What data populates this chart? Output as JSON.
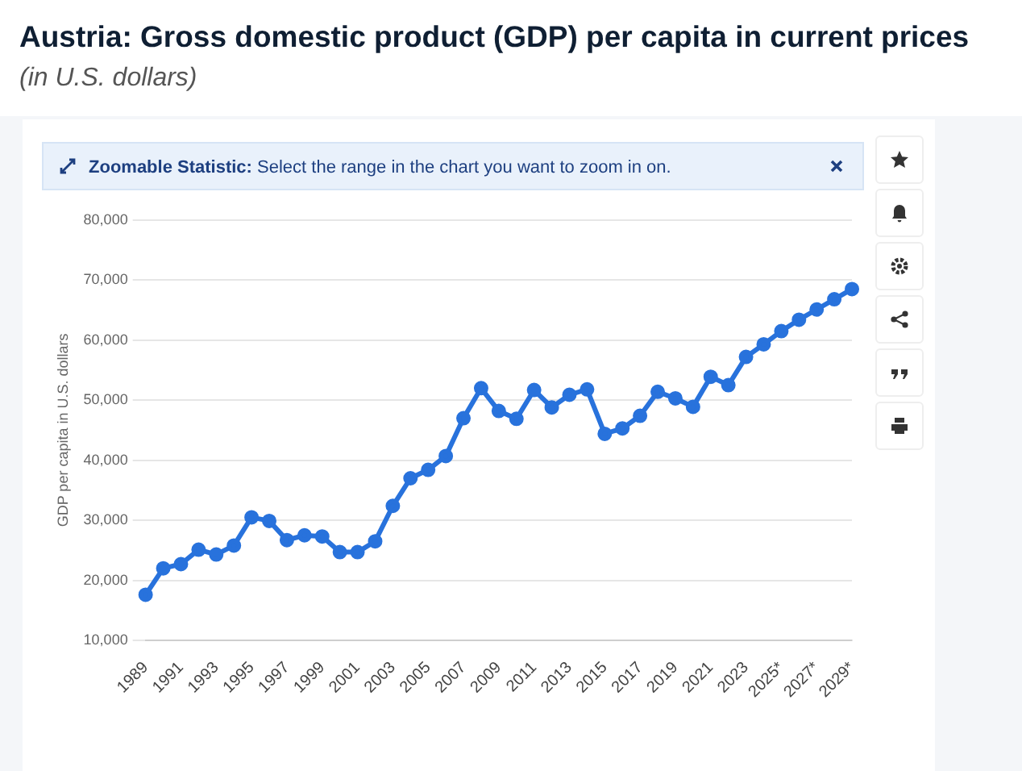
{
  "chart_data": {
    "type": "line",
    "title": "Austria: Gross domestic product (GDP) per capita in current prices",
    "subtitle": "(in U.S. dollars)",
    "ylabel": "GDP per capita in U.S. dollars",
    "annotations": [
      "Zoomable Statistic: Select the range in the chart you want to zoom in on."
    ],
    "categories": [
      "1989",
      null,
      "1991",
      null,
      "1993",
      null,
      "1995",
      null,
      "1997",
      null,
      "1999",
      null,
      "2001",
      null,
      "2003",
      null,
      "2005",
      null,
      "2007",
      null,
      "2009",
      null,
      "2011",
      null,
      "2013",
      null,
      "2015",
      null,
      "2017",
      null,
      "2019",
      null,
      "2021",
      null,
      "2023",
      null,
      "2025*",
      null,
      "2027*",
      null,
      "2029*"
    ],
    "series": [
      {
        "color": "#2872dc",
        "values": [
          17600,
          22000,
          22700,
          25100,
          24300,
          25800,
          30500,
          29900,
          26700,
          27500,
          27300,
          24700,
          24700,
          26500,
          32400,
          37000,
          38400,
          40700,
          47000,
          52000,
          48200,
          46900,
          51700,
          48800,
          50900,
          51800,
          44400,
          45300,
          47400,
          51400,
          50300,
          48900,
          53900,
          52500,
          57200,
          59300,
          61500,
          63400,
          65100,
          66800,
          68500
        ]
      }
    ],
    "ylim": [
      10000,
      80000
    ],
    "yticks": [
      {
        "value": 10000,
        "label": "10,000"
      },
      {
        "value": 20000,
        "label": "20,000"
      },
      {
        "value": 30000,
        "label": "30,000"
      },
      {
        "value": 40000,
        "label": "40,000"
      },
      {
        "value": 50000,
        "label": "50,000"
      },
      {
        "value": 60000,
        "label": "60,000"
      },
      {
        "value": 70000,
        "label": "70,000"
      },
      {
        "value": 80000,
        "label": "80,000"
      }
    ],
    "grid": "y",
    "legend": false,
    "marker": "circle",
    "line_style": "solid"
  }
}
